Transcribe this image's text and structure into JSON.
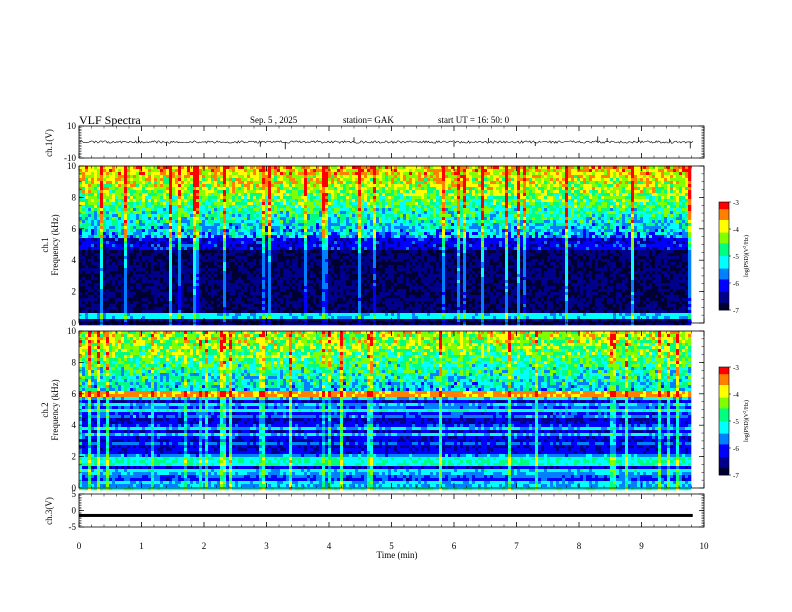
{
  "header": {
    "title": "VLF  Spectra",
    "date": "Sep. 5  , 2025",
    "station": "station= GAK",
    "start": "start  UT  =    16: 50: 0"
  },
  "chart_data": [
    {
      "type": "line",
      "id": "ch1_waveform",
      "ylabel": "ch.1(V)",
      "ylim": [
        -10,
        10
      ],
      "yticks": [
        "10",
        "-10"
      ],
      "baseline": 0,
      "spikes": [
        {
          "t": 0.95,
          "v": 3.5
        },
        {
          "t": 1.4,
          "v": -2.5
        },
        {
          "t": 2.9,
          "v": -3.0
        },
        {
          "t": 3.3,
          "v": -4.5
        },
        {
          "t": 4.4,
          "v": 3.0
        },
        {
          "t": 6.0,
          "v": -3.0
        },
        {
          "t": 6.55,
          "v": 2.5
        },
        {
          "t": 7.3,
          "v": -2.5
        },
        {
          "t": 8.3,
          "v": 3.5
        },
        {
          "t": 8.45,
          "v": 2.5
        },
        {
          "t": 8.95,
          "v": 3.0
        },
        {
          "t": 9.45,
          "v": 2.0
        },
        {
          "t": 9.78,
          "v": -4.0
        }
      ]
    },
    {
      "type": "heatmap",
      "id": "ch1_spectrogram",
      "ylabel_line1": "ch.1",
      "ylabel_line2": "Frequency  (kHz)",
      "ylim": [
        0,
        10
      ],
      "yticks": [
        "0",
        "2",
        "4",
        "6",
        "8",
        "10"
      ],
      "colorbar_label": "log(PSD)(V",
      "colorbar_label_sup": "2",
      "colorbar_label_tail": "/Hz)",
      "colorbar_ticks": [
        "-3",
        "-4",
        "-5",
        "-6",
        "-7"
      ],
      "colorbar_range": [
        -7,
        -3
      ]
    },
    {
      "type": "heatmap",
      "id": "ch2_spectrogram",
      "ylabel_line1": "ch.2",
      "ylabel_line2": "Frequency  (kHz)",
      "ylim": [
        0,
        10
      ],
      "yticks": [
        "0",
        "2",
        "4",
        "6",
        "8",
        "10"
      ],
      "colorbar_label": "log(PSD)(V",
      "colorbar_label_sup": "2",
      "colorbar_label_tail": "/Hz)",
      "colorbar_ticks": [
        "-3",
        "-4",
        "-5",
        "-6",
        "-7"
      ],
      "colorbar_range": [
        -7,
        -3
      ]
    },
    {
      "type": "line",
      "id": "ch3_waveform",
      "ylabel": "ch.3(V)",
      "ylim": [
        -5,
        5
      ],
      "yticks": [
        "5",
        "0",
        "-5"
      ],
      "baseline": -1.5
    }
  ],
  "x_axis": {
    "xlabel": "Time  (min)",
    "xlim": [
      0,
      10
    ],
    "ticks": [
      "0",
      "1",
      "2",
      "3",
      "4",
      "5",
      "6",
      "7",
      "8",
      "9",
      "10"
    ],
    "data_end": 9.82
  },
  "colors": {
    "colormap": [
      "#000033",
      "#00008a",
      "#0000ff",
      "#0080ff",
      "#00ffff",
      "#00ff80",
      "#80ff00",
      "#ffff00",
      "#ff8000",
      "#ff0000",
      "#ffd8d8"
    ]
  }
}
